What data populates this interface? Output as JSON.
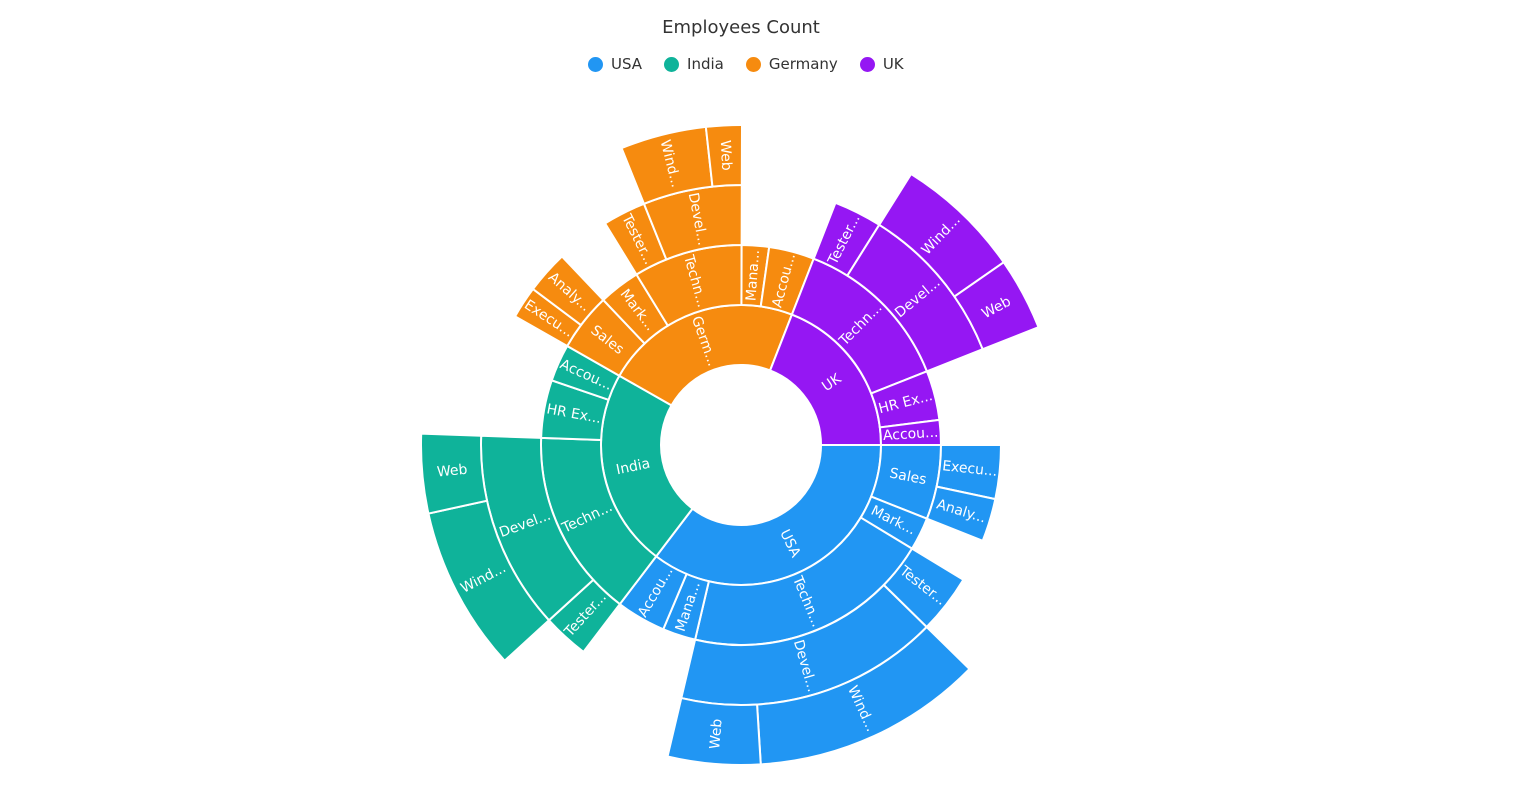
{
  "chart_data": {
    "type": "sunburst",
    "title": "Employees Count",
    "legend": {
      "position": "top",
      "items": [
        {
          "label": "USA",
          "color": "#2196F3"
        },
        {
          "label": "India",
          "color": "#0FB39A"
        },
        {
          "label": "Germany",
          "color": "#F68B0F"
        },
        {
          "label": "UK",
          "color": "#9517F3"
        }
      ]
    },
    "nodes": [
      {
        "label": "USA",
        "children": [
          {
            "label": "Sales",
            "children": [
              {
                "label": "Execu...",
                "value": 50
              },
              {
                "label": "Analy...",
                "value": 40
              }
            ]
          },
          {
            "label": "Mark...",
            "value": 40
          },
          {
            "label": "Techn...",
            "children": [
              {
                "label": "Tester...",
                "value": 55
              },
              {
                "label": "Devel...",
                "children": [
                  {
                    "label": "Wind...",
                    "value": 175
                  },
                  {
                    "label": "Web",
                    "value": 70
                  }
                ]
              }
            ]
          },
          {
            "label": "Mana...",
            "value": 40
          },
          {
            "label": "Accou...",
            "value": 60
          }
        ]
      },
      {
        "label": "India",
        "children": [
          {
            "label": "Techn...",
            "children": [
              {
                "label": "Tester...",
                "value": 43
              },
              {
                "label": "Devel...",
                "children": [
                  {
                    "label": "Wind...",
                    "value": 125
                  },
                  {
                    "label": "Web",
                    "value": 60
                  }
                ]
              }
            ]
          },
          {
            "label": "HR Ex...",
            "value": 70
          },
          {
            "label": "Accou...",
            "value": 45
          }
        ]
      },
      {
        "label": "Germ...",
        "children": [
          {
            "label": "Sales",
            "children": [
              {
                "label": "Execu...",
                "value": 30
              },
              {
                "label": "Analy...",
                "value": 40
              }
            ]
          },
          {
            "label": "Mark...",
            "value": 50
          },
          {
            "label": "Techn...",
            "children": [
              {
                "label": "Tester...",
                "value": 40
              },
              {
                "label": "Devel...",
                "children": [
                  {
                    "label": "Wind...",
                    "value": 65
                  },
                  {
                    "label": "Web",
                    "value": 27
                  }
                ]
              }
            ]
          },
          {
            "label": "Mana...",
            "value": 33
          },
          {
            "label": "Accou...",
            "value": 55
          }
        ]
      },
      {
        "label": "UK",
        "children": [
          {
            "label": "Techn...",
            "children": [
              {
                "label": "Tester...",
                "value": 45
              },
              {
                "label": "Devel...",
                "children": [
                  {
                    "label": "Wind...",
                    "value": 96
                  },
                  {
                    "label": "Web",
                    "value": 55
                  }
                ]
              }
            ]
          },
          {
            "label": "HR Ex...",
            "value": 60
          },
          {
            "label": "Accou...",
            "value": 30
          }
        ]
      }
    ]
  }
}
